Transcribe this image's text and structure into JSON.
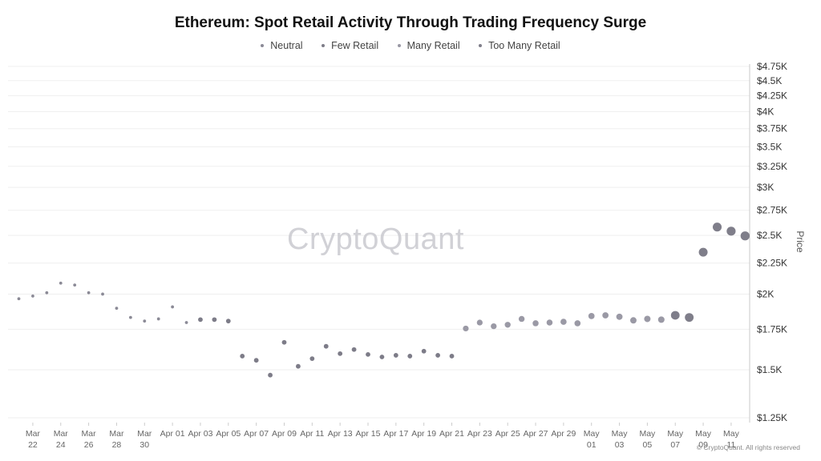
{
  "chart_data": {
    "type": "scatter",
    "title": "Ethereum: Spot Retail Activity Through Trading Frequency Surge",
    "ylabel": "Price",
    "ylim": [
      1250,
      4750
    ],
    "y_ticks": [
      1250,
      1500,
      1750,
      2000,
      2250,
      2500,
      2750,
      3000,
      3250,
      3500,
      3750,
      4000,
      4250,
      4500,
      4750
    ],
    "y_tick_labels": [
      "$1.25K",
      "$1.5K",
      "$1.75K",
      "$2K",
      "$2.25K",
      "$2.5K",
      "$2.75K",
      "$3K",
      "$3.25K",
      "$3.5K",
      "$3.75K",
      "$4K",
      "$4.25K",
      "$4.5K",
      "$4.75K"
    ],
    "y_scale": "log",
    "x_tick_labels": [
      [
        "Mar",
        "22"
      ],
      [
        "Mar",
        "24"
      ],
      [
        "Mar",
        "26"
      ],
      [
        "Mar",
        "28"
      ],
      [
        "Mar",
        "30"
      ],
      [
        "Apr 01"
      ],
      [
        "Apr 03"
      ],
      [
        "Apr 05"
      ],
      [
        "Apr 07"
      ],
      [
        "Apr 09"
      ],
      [
        "Apr 11"
      ],
      [
        "Apr 13"
      ],
      [
        "Apr 15"
      ],
      [
        "Apr 17"
      ],
      [
        "Apr 19"
      ],
      [
        "Apr 21"
      ],
      [
        "Apr 23"
      ],
      [
        "Apr 25"
      ],
      [
        "Apr 27"
      ],
      [
        "Apr 29"
      ],
      [
        "May",
        "01"
      ],
      [
        "May",
        "03"
      ],
      [
        "May",
        "05"
      ],
      [
        "May",
        "07"
      ],
      [
        "May",
        "09"
      ],
      [
        "May",
        "11"
      ]
    ],
    "grid": true,
    "legend_position": "top",
    "series": [
      {
        "name": "Neutral",
        "color": "#8b8a96",
        "points": [
          {
            "date": "2025-03-21",
            "price": 1965
          },
          {
            "date": "2025-03-22",
            "price": 1985
          },
          {
            "date": "2025-03-23",
            "price": 2010
          },
          {
            "date": "2025-03-24",
            "price": 2085
          },
          {
            "date": "2025-03-25",
            "price": 2070
          },
          {
            "date": "2025-03-26",
            "price": 2010
          },
          {
            "date": "2025-03-27",
            "price": 2000
          },
          {
            "date": "2025-03-28",
            "price": 1895
          },
          {
            "date": "2025-03-29",
            "price": 1830
          },
          {
            "date": "2025-03-30",
            "price": 1805
          },
          {
            "date": "2025-03-31",
            "price": 1820
          },
          {
            "date": "2025-04-01",
            "price": 1905
          },
          {
            "date": "2025-04-02",
            "price": 1795
          }
        ]
      },
      {
        "name": "Few Retail",
        "color": "#7d7c88",
        "points": [
          {
            "date": "2025-04-03",
            "price": 1815
          },
          {
            "date": "2025-04-04",
            "price": 1815
          },
          {
            "date": "2025-04-05",
            "price": 1805
          },
          {
            "date": "2025-04-06",
            "price": 1580
          },
          {
            "date": "2025-04-07",
            "price": 1555
          },
          {
            "date": "2025-04-08",
            "price": 1470
          },
          {
            "date": "2025-04-09",
            "price": 1665
          },
          {
            "date": "2025-04-10",
            "price": 1520
          },
          {
            "date": "2025-04-11",
            "price": 1565
          },
          {
            "date": "2025-04-12",
            "price": 1640
          },
          {
            "date": "2025-04-13",
            "price": 1595
          },
          {
            "date": "2025-04-14",
            "price": 1620
          },
          {
            "date": "2025-04-15",
            "price": 1590
          },
          {
            "date": "2025-04-16",
            "price": 1575
          },
          {
            "date": "2025-04-17",
            "price": 1585
          },
          {
            "date": "2025-04-18",
            "price": 1580
          },
          {
            "date": "2025-04-19",
            "price": 1610
          },
          {
            "date": "2025-04-20",
            "price": 1585
          },
          {
            "date": "2025-04-21",
            "price": 1580
          }
        ]
      },
      {
        "name": "Many Retail",
        "color": "#9a99a5",
        "points": [
          {
            "date": "2025-04-22",
            "price": 1755
          },
          {
            "date": "2025-04-23",
            "price": 1795
          },
          {
            "date": "2025-04-24",
            "price": 1770
          },
          {
            "date": "2025-04-25",
            "price": 1780
          },
          {
            "date": "2025-04-26",
            "price": 1820
          },
          {
            "date": "2025-04-27",
            "price": 1790
          },
          {
            "date": "2025-04-28",
            "price": 1795
          },
          {
            "date": "2025-04-29",
            "price": 1800
          },
          {
            "date": "2025-04-30",
            "price": 1790
          },
          {
            "date": "2025-05-01",
            "price": 1840
          },
          {
            "date": "2025-05-02",
            "price": 1845
          },
          {
            "date": "2025-05-03",
            "price": 1835
          },
          {
            "date": "2025-05-04",
            "price": 1810
          },
          {
            "date": "2025-05-05",
            "price": 1820
          },
          {
            "date": "2025-05-06",
            "price": 1815
          }
        ]
      },
      {
        "name": "Too Many Retail",
        "color": "#7f7e8a",
        "points": [
          {
            "date": "2025-05-07",
            "price": 1845
          },
          {
            "date": "2025-05-08",
            "price": 1830
          },
          {
            "date": "2025-05-09",
            "price": 2345
          },
          {
            "date": "2025-05-10",
            "price": 2580
          },
          {
            "date": "2025-05-11",
            "price": 2540
          },
          {
            "date": "2025-05-12",
            "price": 2495
          }
        ]
      }
    ],
    "watermark": "CryptoQuant",
    "copyright": "© CryptoQuant. All rights reserved"
  }
}
